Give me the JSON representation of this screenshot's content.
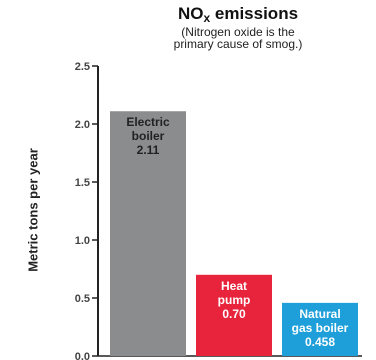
{
  "chart_data": {
    "type": "bar",
    "title_main": "NO",
    "title_sub": "x",
    "title_rest": " emissions",
    "subtitle_lines": [
      "(Nitrogen oxide is the",
      "primary cause of smog.)"
    ],
    "ylabel": "Metric tons per year",
    "ylim": [
      0,
      2.5
    ],
    "yticks": [
      "0.0",
      "0.5",
      "1.0",
      "1.5",
      "2.0",
      "2.5"
    ],
    "bars": [
      {
        "label_lines": [
          "Electric",
          "boiler"
        ],
        "value": 2.11,
        "value_label": "2.11",
        "color": "#8a8c8e",
        "label_color": "#222222"
      },
      {
        "label_lines": [
          "Heat",
          "pump"
        ],
        "value": 0.7,
        "value_label": "0.70",
        "color": "#e8243c",
        "label_color": "#ffffff"
      },
      {
        "label_lines": [
          "Natural",
          "gas boiler"
        ],
        "value": 0.458,
        "value_label": "0.458",
        "color": "#1e9fd9",
        "label_color": "#ffffff"
      }
    ]
  }
}
